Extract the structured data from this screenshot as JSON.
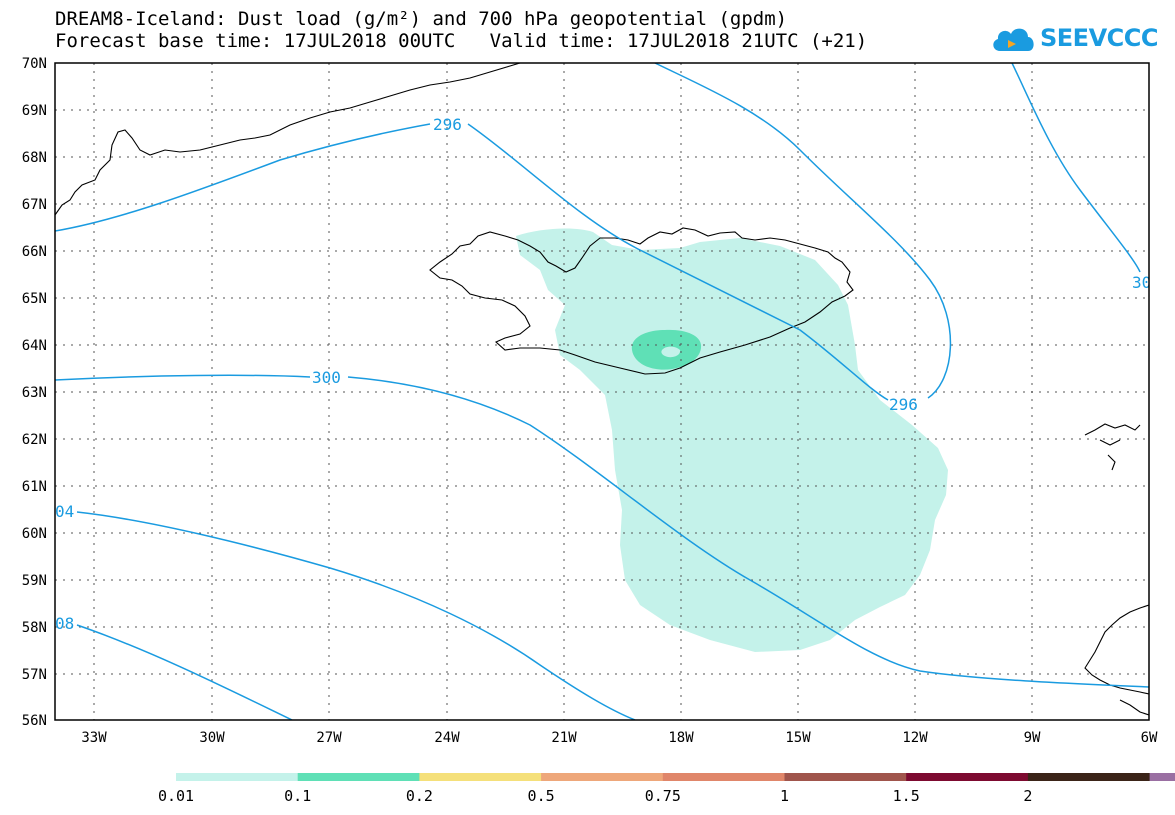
{
  "title": {
    "line1": "DREAM8-Iceland: Dust load (g/m²) and 700 hPa geopotential (gpdm)",
    "line2": "Forecast base time: 17JUL2018 00UTC   Valid time: 17JUL2018 21UTC (+21)"
  },
  "logo": {
    "text": "SEEVCCC",
    "color": "#1a9be0"
  },
  "axes": {
    "lat_labels": [
      "70N",
      "69N",
      "68N",
      "67N",
      "66N",
      "65N",
      "64N",
      "63N",
      "62N",
      "61N",
      "60N",
      "59N",
      "58N",
      "57N",
      "56N"
    ],
    "lon_labels": [
      "33W",
      "30W",
      "27W",
      "24W",
      "21W",
      "18W",
      "15W",
      "12W",
      "9W",
      "6W"
    ],
    "lat_range": [
      56,
      70
    ],
    "lon_range": [
      -34.1,
      -6
    ],
    "grid": true
  },
  "contours": {
    "color": "#1a9be0",
    "labels": [
      "296",
      "300",
      "296",
      "04",
      "08",
      "30"
    ]
  },
  "colorbar": {
    "ticks": [
      "0.01",
      "0.1",
      "0.2",
      "0.5",
      "0.75",
      "1",
      "1.5",
      "2"
    ],
    "colors": [
      "#c4f2ea",
      "#5fe0b6",
      "#f5e07a",
      "#eea77a",
      "#e0866a",
      "#a0554c",
      "#7d0a30",
      "#3b2418",
      "#9a6fa2"
    ]
  },
  "dust": {
    "low_color": "#c4f2ea",
    "mid_color": "#5fe0b6"
  }
}
